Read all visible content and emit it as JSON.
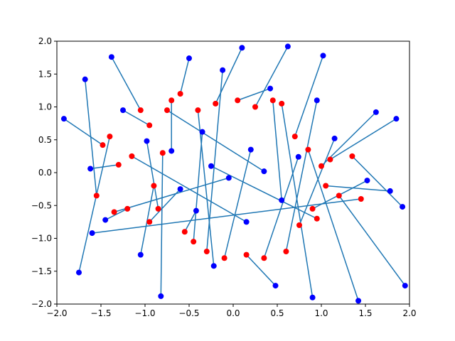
{
  "chart_data": {
    "type": "scatter",
    "title": "",
    "xlabel": "",
    "ylabel": "",
    "xlim": [
      -2.0,
      2.0
    ],
    "ylim": [
      -2.0,
      2.0
    ],
    "grid": false,
    "legend": "none",
    "x_ticks": [
      "−2.0",
      "−1.5",
      "−1.0",
      "−0.5",
      "0.0",
      "0.5",
      "1.0",
      "1.5",
      "2.0"
    ],
    "y_ticks": [
      "−2.0",
      "−1.5",
      "−1.0",
      "−0.5",
      "0.0",
      "0.5",
      "1.0",
      "1.5",
      "2.0"
    ],
    "x_tick_values": [
      -2.0,
      -1.5,
      -1.0,
      -0.5,
      0.0,
      0.5,
      1.0,
      1.5,
      2.0
    ],
    "y_tick_values": [
      -2.0,
      -1.5,
      -1.0,
      -0.5,
      0.0,
      0.5,
      1.0,
      1.5,
      2.0
    ],
    "colors": {
      "source": "#ff0000",
      "target": "#0000ff",
      "segment": "#1f77b4"
    },
    "series": [
      {
        "values": [
          [
            -1.48,
            0.42
          ],
          [
            -1.4,
            0.55
          ],
          [
            -1.55,
            -0.35
          ],
          [
            -1.3,
            0.12
          ],
          [
            -1.2,
            -0.55
          ],
          [
            -1.05,
            0.95
          ],
          [
            -0.95,
            0.72
          ],
          [
            -0.9,
            -0.2
          ],
          [
            -0.85,
            -0.55
          ],
          [
            -0.8,
            0.3
          ],
          [
            -0.7,
            1.1
          ],
          [
            -0.6,
            1.2
          ],
          [
            -0.55,
            -0.9
          ],
          [
            -0.45,
            -1.05
          ],
          [
            -0.4,
            0.95
          ],
          [
            -0.3,
            -1.2
          ],
          [
            -0.2,
            1.05
          ],
          [
            -0.1,
            -1.3
          ],
          [
            0.05,
            1.1
          ],
          [
            0.15,
            -1.25
          ],
          [
            0.25,
            1.0
          ],
          [
            0.35,
            -1.3
          ],
          [
            0.55,
            1.05
          ],
          [
            0.6,
            -1.2
          ],
          [
            0.7,
            0.55
          ],
          [
            0.75,
            -0.8
          ],
          [
            0.85,
            0.35
          ],
          [
            0.9,
            -0.55
          ],
          [
            1.0,
            0.1
          ],
          [
            1.05,
            -0.2
          ],
          [
            1.1,
            0.2
          ],
          [
            1.2,
            -0.35
          ],
          [
            1.35,
            0.25
          ],
          [
            1.45,
            -0.4
          ],
          [
            -1.35,
            -0.6
          ],
          [
            -1.15,
            0.25
          ],
          [
            -0.75,
            0.95
          ],
          [
            0.45,
            1.1
          ],
          [
            0.95,
            -0.7
          ],
          [
            -0.95,
            -0.75
          ]
        ]
      },
      {
        "values": [
          [
            -1.92,
            0.82
          ],
          [
            -1.75,
            -1.52
          ],
          [
            -1.68,
            1.42
          ],
          [
            -1.62,
            0.06
          ],
          [
            -1.45,
            -0.72
          ],
          [
            -1.38,
            1.76
          ],
          [
            -1.25,
            0.95
          ],
          [
            -1.05,
            -1.25
          ],
          [
            -0.98,
            0.48
          ],
          [
            -0.82,
            -1.88
          ],
          [
            -0.7,
            0.33
          ],
          [
            -0.5,
            1.74
          ],
          [
            -0.42,
            -0.58
          ],
          [
            -0.35,
            0.62
          ],
          [
            -0.22,
            -1.42
          ],
          [
            -0.12,
            1.56
          ],
          [
            0.1,
            1.9
          ],
          [
            0.2,
            0.35
          ],
          [
            0.42,
            1.28
          ],
          [
            0.48,
            -1.72
          ],
          [
            0.62,
            1.92
          ],
          [
            0.74,
            0.24
          ],
          [
            0.9,
            -1.9
          ],
          [
            0.95,
            1.1
          ],
          [
            1.02,
            1.78
          ],
          [
            1.15,
            0.52
          ],
          [
            1.42,
            -1.95
          ],
          [
            1.52,
            -0.12
          ],
          [
            1.62,
            0.92
          ],
          [
            1.78,
            -0.28
          ],
          [
            1.85,
            0.82
          ],
          [
            1.95,
            -1.72
          ],
          [
            1.92,
            -0.52
          ],
          [
            -1.6,
            -0.92
          ],
          [
            -0.05,
            -0.08
          ],
          [
            0.15,
            -0.75
          ],
          [
            0.35,
            0.02
          ],
          [
            0.55,
            -0.42
          ],
          [
            -0.25,
            0.1
          ],
          [
            -0.6,
            -0.25
          ]
        ]
      }
    ]
  }
}
